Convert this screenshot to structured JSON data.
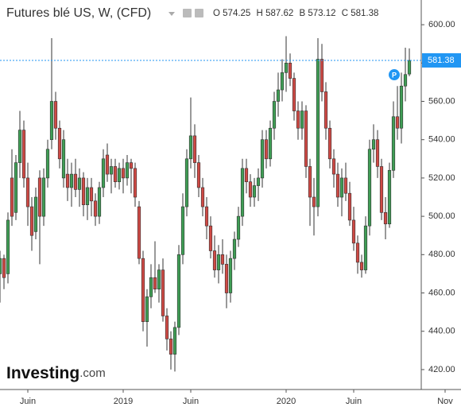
{
  "chart_data": {
    "type": "candlestick",
    "title": "Futures blé US, W, (CFD)",
    "ohlc_labels": [
      "O",
      "H",
      "B",
      "C"
    ],
    "annotation": "P",
    "logo": [
      "Investing",
      ".com"
    ],
    "up_color": "#3f9e55",
    "down_color": "#cf4a45",
    "last_price_color": "#2196f3",
    "categories": [
      null,
      null,
      null,
      null,
      null,
      null,
      null,
      "Juin",
      null,
      null,
      null,
      null,
      null,
      null,
      null,
      null,
      null,
      null,
      null,
      null,
      null,
      null,
      null,
      null,
      null,
      null,
      null,
      null,
      null,
      null,
      null,
      "2019",
      null,
      null,
      null,
      null,
      null,
      null,
      null,
      null,
      null,
      null,
      null,
      null,
      null,
      null,
      null,
      null,
      "Juin",
      null,
      null,
      null,
      null,
      null,
      null,
      null,
      null,
      null,
      null,
      null,
      null,
      null,
      null,
      null,
      null,
      null,
      null,
      null,
      null,
      null,
      null,
      null,
      "2020",
      null,
      null,
      null,
      null,
      null,
      null,
      null,
      null,
      null,
      null,
      null,
      null,
      null,
      null,
      null,
      null,
      "Juin",
      null,
      null,
      null,
      null,
      null,
      null,
      null,
      null,
      null,
      null,
      null,
      null,
      null,
      null,
      null,
      null,
      null,
      null,
      null,
      null,
      null,
      null,
      "Nov"
    ],
    "open": [
      470,
      478,
      470,
      520,
      502,
      528,
      545,
      520,
      505,
      492,
      520,
      500,
      520,
      540,
      560,
      546,
      520,
      522,
      515,
      522,
      514,
      520,
      506,
      515,
      508,
      500,
      515,
      532,
      522,
      526,
      518,
      525,
      520,
      528,
      525,
      505,
      478,
      445,
      458,
      468,
      462,
      472,
      448,
      436,
      428,
      442,
      480,
      505,
      530,
      542,
      528,
      515,
      505,
      495,
      482,
      472,
      480,
      475,
      460,
      478,
      488,
      500,
      525,
      518,
      510,
      516,
      520,
      540,
      530,
      546,
      560,
      566,
      575,
      580,
      572,
      555,
      546,
      555,
      526,
      510,
      505,
      582,
      565,
      546,
      530,
      522,
      510,
      520,
      512,
      498,
      486,
      476,
      472,
      495,
      535,
      540,
      526,
      502,
      496,
      524,
      552,
      546,
      568,
      574.25,
      null,
      null,
      null,
      null,
      null,
      null,
      null,
      null,
      null
    ],
    "high": [
      482,
      480,
      502,
      535,
      532,
      555,
      550,
      528,
      510,
      515,
      524,
      525,
      540,
      593,
      565,
      550,
      545,
      530,
      528,
      530,
      525,
      523,
      520,
      520,
      512,
      518,
      535,
      538,
      530,
      530,
      528,
      530,
      532,
      530,
      528,
      508,
      482,
      462,
      475,
      487,
      475,
      478,
      452,
      440,
      445,
      485,
      512,
      535,
      562,
      548,
      532,
      520,
      510,
      500,
      490,
      485,
      488,
      480,
      482,
      492,
      505,
      530,
      530,
      522,
      520,
      525,
      545,
      545,
      550,
      565,
      575,
      582,
      594,
      585,
      575,
      560,
      560,
      558,
      530,
      520,
      593,
      590,
      570,
      550,
      535,
      528,
      525,
      528,
      518,
      505,
      490,
      480,
      500,
      540,
      548,
      545,
      530,
      510,
      528,
      560,
      568,
      575,
      588,
      587.62,
      null,
      null,
      null,
      null,
      null,
      null,
      null,
      null,
      null
    ],
    "low": [
      455,
      462,
      465,
      495,
      498,
      520,
      515,
      495,
      482,
      488,
      475,
      495,
      515,
      535,
      540,
      525,
      515,
      508,
      505,
      510,
      505,
      500,
      498,
      500,
      495,
      496,
      510,
      518,
      512,
      515,
      514,
      512,
      516,
      512,
      505,
      475,
      440,
      432,
      452,
      460,
      455,
      445,
      430,
      420,
      419,
      438,
      475,
      500,
      525,
      520,
      510,
      500,
      488,
      478,
      468,
      465,
      470,
      452,
      455,
      472,
      484,
      495,
      512,
      505,
      505,
      508,
      515,
      525,
      526,
      540,
      552,
      560,
      565,
      568,
      550,
      540,
      540,
      520,
      495,
      490,
      500,
      560,
      540,
      525,
      515,
      505,
      500,
      508,
      495,
      482,
      470,
      468,
      470,
      490,
      528,
      520,
      498,
      488,
      494,
      520,
      540,
      538,
      560,
      573.12,
      null,
      null,
      null,
      null,
      null,
      null,
      null,
      null,
      null
    ],
    "close": [
      478,
      468,
      498,
      500,
      528,
      545,
      520,
      505,
      490,
      510,
      500,
      520,
      535,
      560,
      546,
      530,
      540,
      515,
      522,
      514,
      520,
      506,
      515,
      508,
      500,
      515,
      530,
      522,
      526,
      518,
      525,
      520,
      528,
      525,
      510,
      478,
      445,
      458,
      468,
      462,
      472,
      448,
      436,
      428,
      442,
      480,
      505,
      530,
      542,
      528,
      515,
      505,
      495,
      482,
      472,
      480,
      475,
      460,
      478,
      488,
      500,
      525,
      518,
      510,
      516,
      520,
      540,
      530,
      546,
      560,
      566,
      575,
      580,
      572,
      555,
      546,
      555,
      526,
      510,
      505,
      582,
      565,
      546,
      530,
      522,
      510,
      520,
      512,
      498,
      486,
      476,
      472,
      495,
      535,
      540,
      526,
      502,
      496,
      524,
      552,
      546,
      568,
      574,
      581.38,
      null,
      null,
      null,
      null,
      null,
      null,
      null,
      null,
      null
    ],
    "ylim": [
      409.6,
      612.9
    ],
    "yticks": [
      {
        "value": 420,
        "label": "420.00"
      },
      {
        "value": 440,
        "label": "440.00"
      },
      {
        "value": 460,
        "label": "460.00"
      },
      {
        "value": 480,
        "label": "480.00"
      },
      {
        "value": 500,
        "label": "500.00"
      },
      {
        "value": 520,
        "label": "520.00"
      },
      {
        "value": 540,
        "label": "540.00"
      },
      {
        "value": 560,
        "label": "560.00"
      },
      {
        "value": 580,
        "label": "580.00"
      },
      {
        "value": 600,
        "label": "600.00"
      }
    ]
  }
}
